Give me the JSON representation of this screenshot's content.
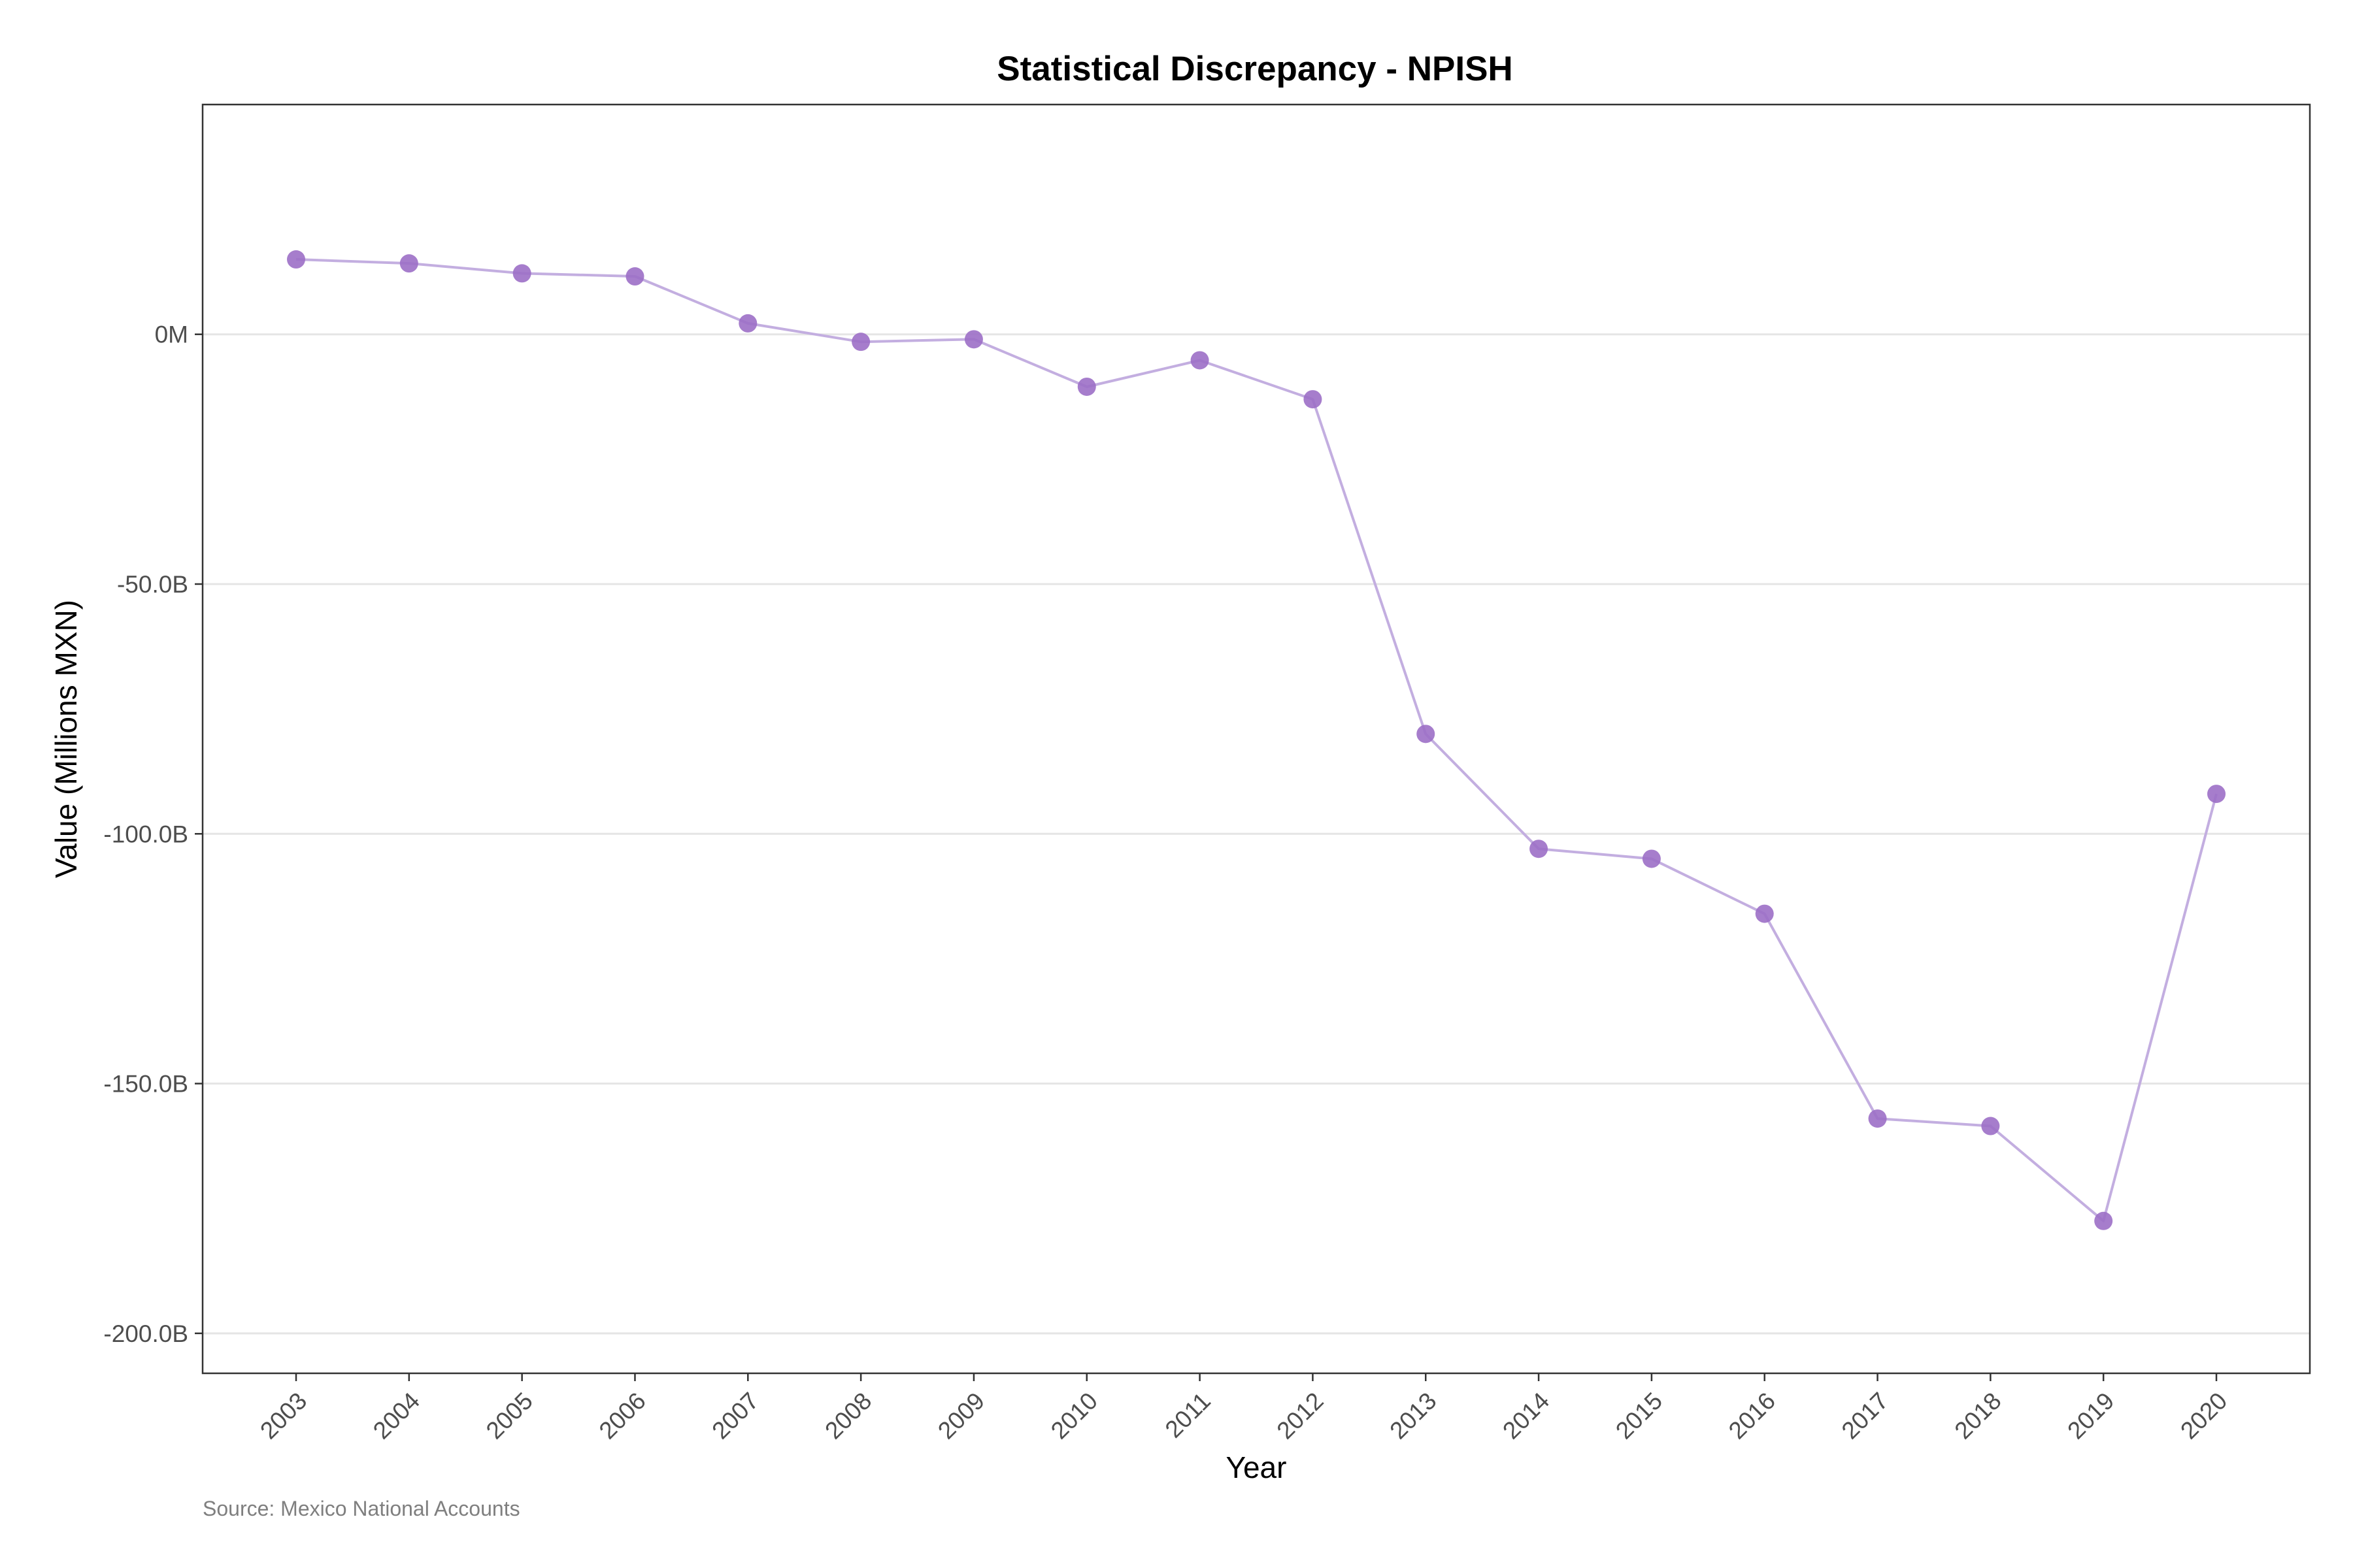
{
  "chart_data": {
    "type": "line",
    "title": "Statistical Discrepancy - NPISH",
    "xlabel": "Year",
    "ylabel": "Value (Millions MXN)",
    "caption": "Source: Mexico National Accounts",
    "x": [
      "2003",
      "2004",
      "2005",
      "2006",
      "2007",
      "2008",
      "2009",
      "2010",
      "2011",
      "2012",
      "2013",
      "2014",
      "2015",
      "2016",
      "2017",
      "2018",
      "2019",
      "2020"
    ],
    "series": [
      {
        "values": [
          15000,
          14200,
          12200,
          11600,
          2200,
          -1500,
          -1000,
          -10500,
          -5200,
          -13000,
          -80000,
          -103000,
          -105000,
          -116000,
          -157000,
          -158500,
          -177500,
          -92000
        ],
        "line_color": "#c3aee0",
        "marker_color": "#9c6fc6"
      }
    ],
    "yticks": [
      {
        "value": 0,
        "label": "0M"
      },
      {
        "value": -50000,
        "label": "-50.0B"
      },
      {
        "value": -100000,
        "label": "-100.0B"
      },
      {
        "value": -150000,
        "label": "-150.0B"
      },
      {
        "value": -200000,
        "label": "-200.0B"
      }
    ],
    "ylim": [
      -208000,
      46000
    ],
    "grid": "horizontal major",
    "legend": "none"
  }
}
